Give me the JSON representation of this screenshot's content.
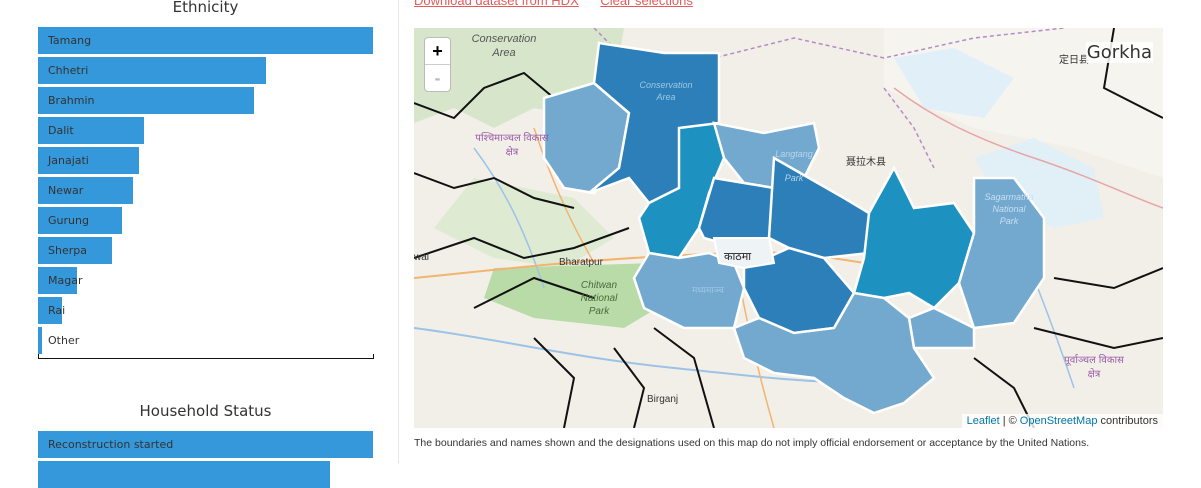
{
  "ethnicity": {
    "title": "Ethnicity",
    "items": [
      {
        "label": "Tamang",
        "value": 1.0
      },
      {
        "label": "Chhetri",
        "value": 0.68
      },
      {
        "label": "Brahmin",
        "value": 0.645
      },
      {
        "label": "Dalit",
        "value": 0.315
      },
      {
        "label": "Janajati",
        "value": 0.3
      },
      {
        "label": "Newar",
        "value": 0.285
      },
      {
        "label": "Gurung",
        "value": 0.25
      },
      {
        "label": "Sherpa",
        "value": 0.22
      },
      {
        "label": "Magar",
        "value": 0.115
      },
      {
        "label": "Rai",
        "value": 0.072
      },
      {
        "label": "Other",
        "value": 0.012
      }
    ]
  },
  "household": {
    "title": "Household Status",
    "items": [
      {
        "label": "Reconstruction started",
        "value": 1.0
      },
      {
        "label": "",
        "value": 0.873
      }
    ]
  },
  "links": {
    "download": "Download dataset from HDX",
    "clear": "Clear selections"
  },
  "map": {
    "title": "Gorkha",
    "zoom_in": "+",
    "zoom_out": "-",
    "attribution_leaflet": "Leaflet",
    "attribution_sep": "| ©",
    "attribution_osm": "OpenStreetMap",
    "attribution_tail": "contributors",
    "place_labels": {
      "conservation_top": "Conservation",
      "area_top": "Area",
      "conservation_inner": "Conservation",
      "area_inner": "Area",
      "western_region": "पश्चिमाञ्चल विकास",
      "kshetra": "क्षेत्र",
      "langtang": "Langtang",
      "park": "Park",
      "nyalam": "聂拉木县",
      "dingri": "定日县",
      "sagarmatha": "Sagarmatha",
      "national": "National",
      "park2": "Park",
      "bharatpur": "Bharatpur",
      "chitwan": "Chitwan",
      "national_park": "National",
      "park3": "Park",
      "kathmandu": "काठमा",
      "central_region": "मध्यमाञ्च",
      "eastern_region": "पूर्वाञ्चल विकास",
      "kshetra2": "क्षेत्र",
      "birgunj": "Birganj",
      "wal": "wal"
    },
    "colors": {
      "dark": "#2c7fb8",
      "mid": "#2b8cbe",
      "light": "#74a9cf",
      "teal": "#1d91c0"
    }
  },
  "disclaimer": "The boundaries and names shown and the designations used on this map do not imply official endorsement or acceptance by the United Nations.",
  "colors": {
    "bar": "#3498db",
    "accent": "#e55b5b"
  }
}
